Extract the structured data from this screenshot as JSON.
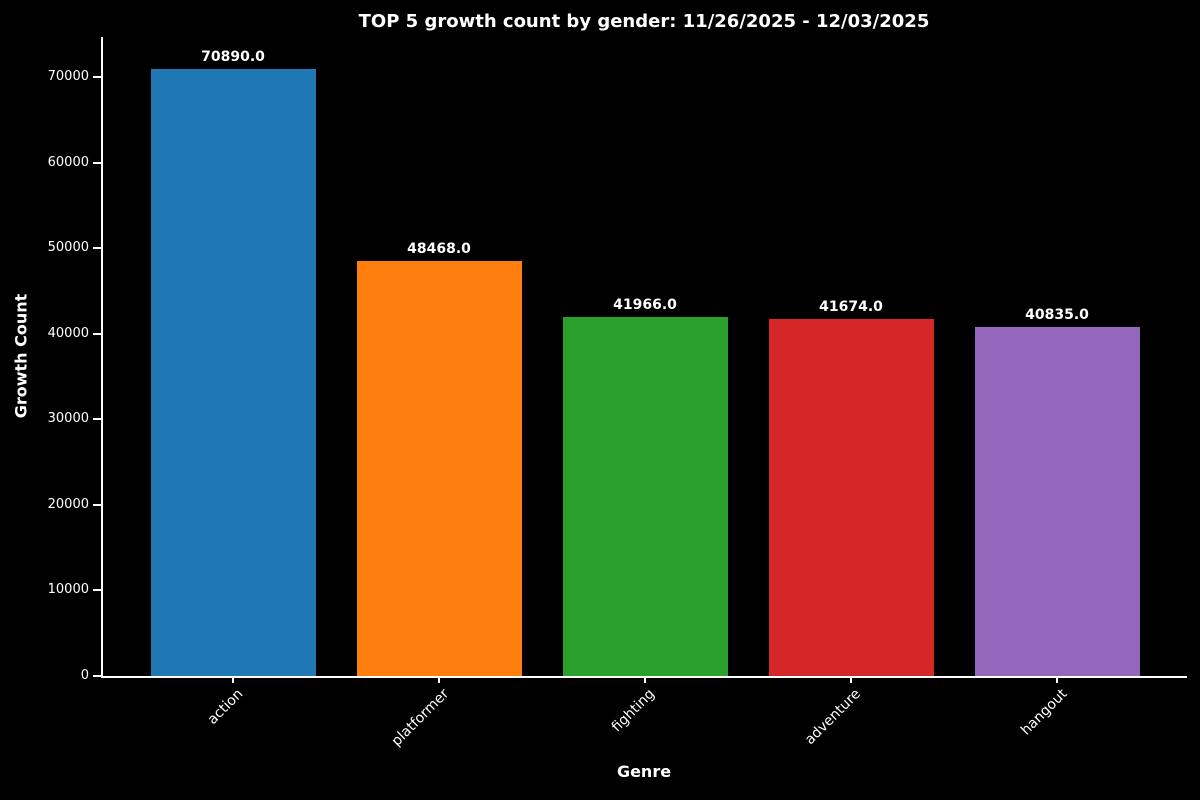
{
  "page": {
    "background": "#000000",
    "text_color": "#ffffff"
  },
  "chart_data": {
    "type": "bar",
    "title": "TOP 5 growth count by gender: 11/26/2025 - 12/03/2025",
    "xlabel": "Genre",
    "ylabel": "Growth Count",
    "categories": [
      "action",
      "platformer",
      "fighting",
      "adventure",
      "hangout"
    ],
    "values": [
      70890.0,
      48468.0,
      41966.0,
      41674.0,
      40835.0
    ],
    "bar_value_labels": [
      "70890.0",
      "48468.0",
      "41966.0",
      "41674.0",
      "40835.0"
    ],
    "bar_colors": [
      "#1f77b4",
      "#ff7f0e",
      "#2ca02c",
      "#d62728",
      "#9467bd"
    ],
    "ylim": [
      0,
      74676
    ],
    "yticks": [
      0,
      10000,
      20000,
      30000,
      40000,
      50000,
      60000,
      70000
    ],
    "ytick_labels": [
      "0",
      "10000",
      "20000",
      "30000",
      "40000",
      "50000",
      "60000",
      "70000"
    ],
    "xtick_rotation_deg": 45,
    "grid": false,
    "legend_position": "none"
  }
}
